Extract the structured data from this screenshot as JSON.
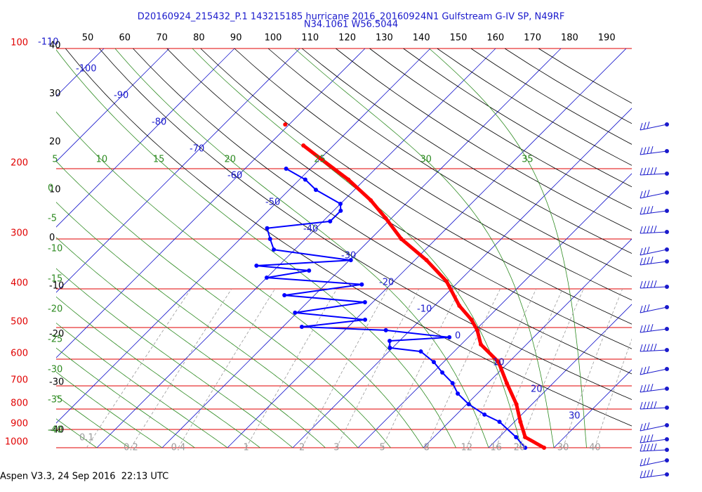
{
  "header": {
    "title": "D20160924_215432_P.1 143215185 hurricane 2016_20160924N1 Gulfstream G-IV SP, N49RF",
    "subtitle": "N34.1061 W56.5044"
  },
  "chart_data": {
    "type": "skew-t",
    "ylim": [
      100,
      1000
    ],
    "yticks": [
      100,
      200,
      300,
      400,
      500,
      600,
      700,
      800,
      900,
      1000
    ],
    "ylog": true,
    "ycolor": "#e00000",
    "top_labels": [
      50,
      60,
      70,
      80,
      90,
      100,
      110,
      120,
      130,
      140,
      150,
      160,
      170,
      180,
      190
    ],
    "left_labels": [
      40,
      30,
      20,
      10,
      0,
      -10,
      -20,
      -30,
      -40
    ],
    "isotherms": {
      "color": "#1a1acc",
      "values": [
        -110,
        -100,
        -90,
        -80,
        -70,
        -60,
        -50,
        -40,
        -30,
        -20,
        -10,
        0,
        10,
        20,
        30
      ]
    },
    "moist_adiabats": {
      "color": "#2e8b22",
      "top": [
        5,
        10,
        15,
        20,
        25,
        30,
        35
      ],
      "left": [
        0,
        -5,
        -10,
        -15,
        -20,
        -25,
        -30,
        -35,
        -40
      ]
    },
    "mixing_ratio": {
      "color": "#999999",
      "values": [
        0.1,
        0.2,
        0.4,
        1,
        2,
        3,
        5,
        8,
        12,
        16,
        20,
        30,
        40
      ]
    },
    "series": [
      {
        "color": "#ff0000",
        "pressure": [
          1000,
          941,
          861,
          778,
          689,
          610,
          551,
          508,
          478,
          441,
          383,
          339,
          300,
          266,
          240,
          213,
          188,
          175
        ],
        "temperature": [
          28.5,
          24.0,
          20.9,
          17.6,
          12.9,
          8.4,
          3.0,
          0.3,
          -2.2,
          -6.2,
          -11.9,
          -18.2,
          -25.3,
          -30.9,
          -35.9,
          -42.5,
          -50.2,
          -54.6
        ]
      },
      {
        "color": "#0000ff",
        "pressure": [
          1000,
          941,
          861,
          826,
          778,
          732,
          689,
          648,
          610,
          574,
          562,
          540,
          529,
          508,
          498,
          478,
          459,
          432,
          415,
          390,
          375,
          360,
          350,
          339,
          319,
          300,
          282,
          271,
          255,
          245,
          226,
          213,
          200
        ],
        "temperature": [
          25.6,
          22.6,
          17.7,
          14.3,
          10.3,
          7.0,
          4.6,
          1.4,
          -1.5,
          -5.1,
          -10.4,
          -11.5,
          -2.9,
          -13.7,
          -27.1,
          -18.5,
          -30.3,
          -21.2,
          -34.6,
          -24.4,
          -40.0,
          -34.6,
          -43.4,
          -29.8,
          -43.2,
          -45.4,
          -47.5,
          -38.9,
          -38.9,
          -40.0,
          -45.9,
          -49.1,
          -53.7
        ]
      },
      {
        "color": "#ff0000",
        "pressure": [
          155
        ],
        "temperature": [
          -60.6
        ]
      }
    ]
  },
  "footer": "Aspen V3.3, 24 Sep 2016  22:13 UTC"
}
